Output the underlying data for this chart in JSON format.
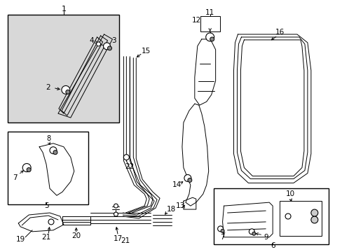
{
  "bg_color": "#ffffff",
  "lc": "#000000",
  "shade_color": "#d8d8d8",
  "fig_w": 4.89,
  "fig_h": 3.6,
  "dpi": 100
}
